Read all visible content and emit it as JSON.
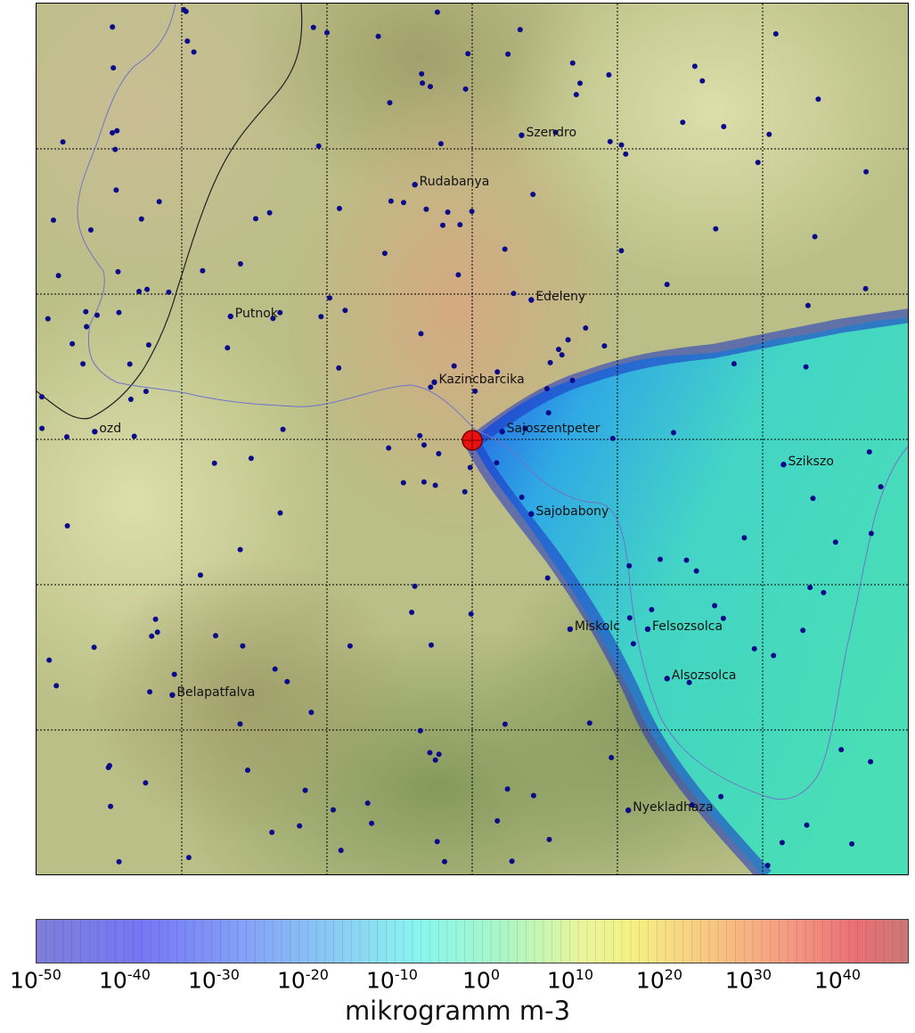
{
  "map": {
    "towns": [
      {
        "name": "Szendro",
        "lon": 20.73,
        "lat": 48.4
      },
      {
        "name": "Rudabanya",
        "lon": 20.62,
        "lat": 48.37
      },
      {
        "name": "Edeleny",
        "lon": 20.74,
        "lat": 48.3
      },
      {
        "name": "Putnok",
        "lon": 20.43,
        "lat": 48.29
      },
      {
        "name": "Kazincbarcika",
        "lon": 20.64,
        "lat": 48.25
      },
      {
        "name": "ozd",
        "lon": 20.29,
        "lat": 48.22
      },
      {
        "name": "Sajoszentpeter",
        "lon": 20.71,
        "lat": 48.22
      },
      {
        "name": "Szikszo",
        "lon": 21.0,
        "lat": 48.2
      },
      {
        "name": "Sajobabony",
        "lon": 20.74,
        "lat": 48.17
      },
      {
        "name": "Miskolc",
        "lon": 20.78,
        "lat": 48.1
      },
      {
        "name": "Felsozsolca",
        "lon": 20.86,
        "lat": 48.1
      },
      {
        "name": "Alsozsolca",
        "lon": 20.88,
        "lat": 48.07
      },
      {
        "name": "Belapatfalva",
        "lon": 20.37,
        "lat": 48.06
      },
      {
        "name": "Nyekladhaza",
        "lon": 20.84,
        "lat": 47.99
      }
    ],
    "source_point": {
      "name": "source",
      "marker": "red-circle-crosshair",
      "color": "#e8110f"
    },
    "station_color": "#0a0a8a",
    "border_color": "#222222",
    "river_color": "#6f74c8",
    "grid": true,
    "gridlines": 6
  },
  "colorbar": {
    "label": "mikrogramm m-3",
    "tick_labels": [
      {
        "base": "10",
        "exp": "-50"
      },
      {
        "base": "10",
        "exp": "-40"
      },
      {
        "base": "10",
        "exp": "-30"
      },
      {
        "base": "10",
        "exp": "-20"
      },
      {
        "base": "10",
        "exp": "-10"
      },
      {
        "base": "10",
        "exp": "0"
      },
      {
        "base": "10",
        "exp": "10"
      },
      {
        "base": "10",
        "exp": "20"
      },
      {
        "base": "10",
        "exp": "30"
      },
      {
        "base": "10",
        "exp": "40"
      }
    ],
    "range_exponent": [
      -50,
      48
    ],
    "scale": "log",
    "colors": [
      "#7878d8",
      "#84f6ee",
      "#f5f27f",
      "#c9706e"
    ]
  }
}
